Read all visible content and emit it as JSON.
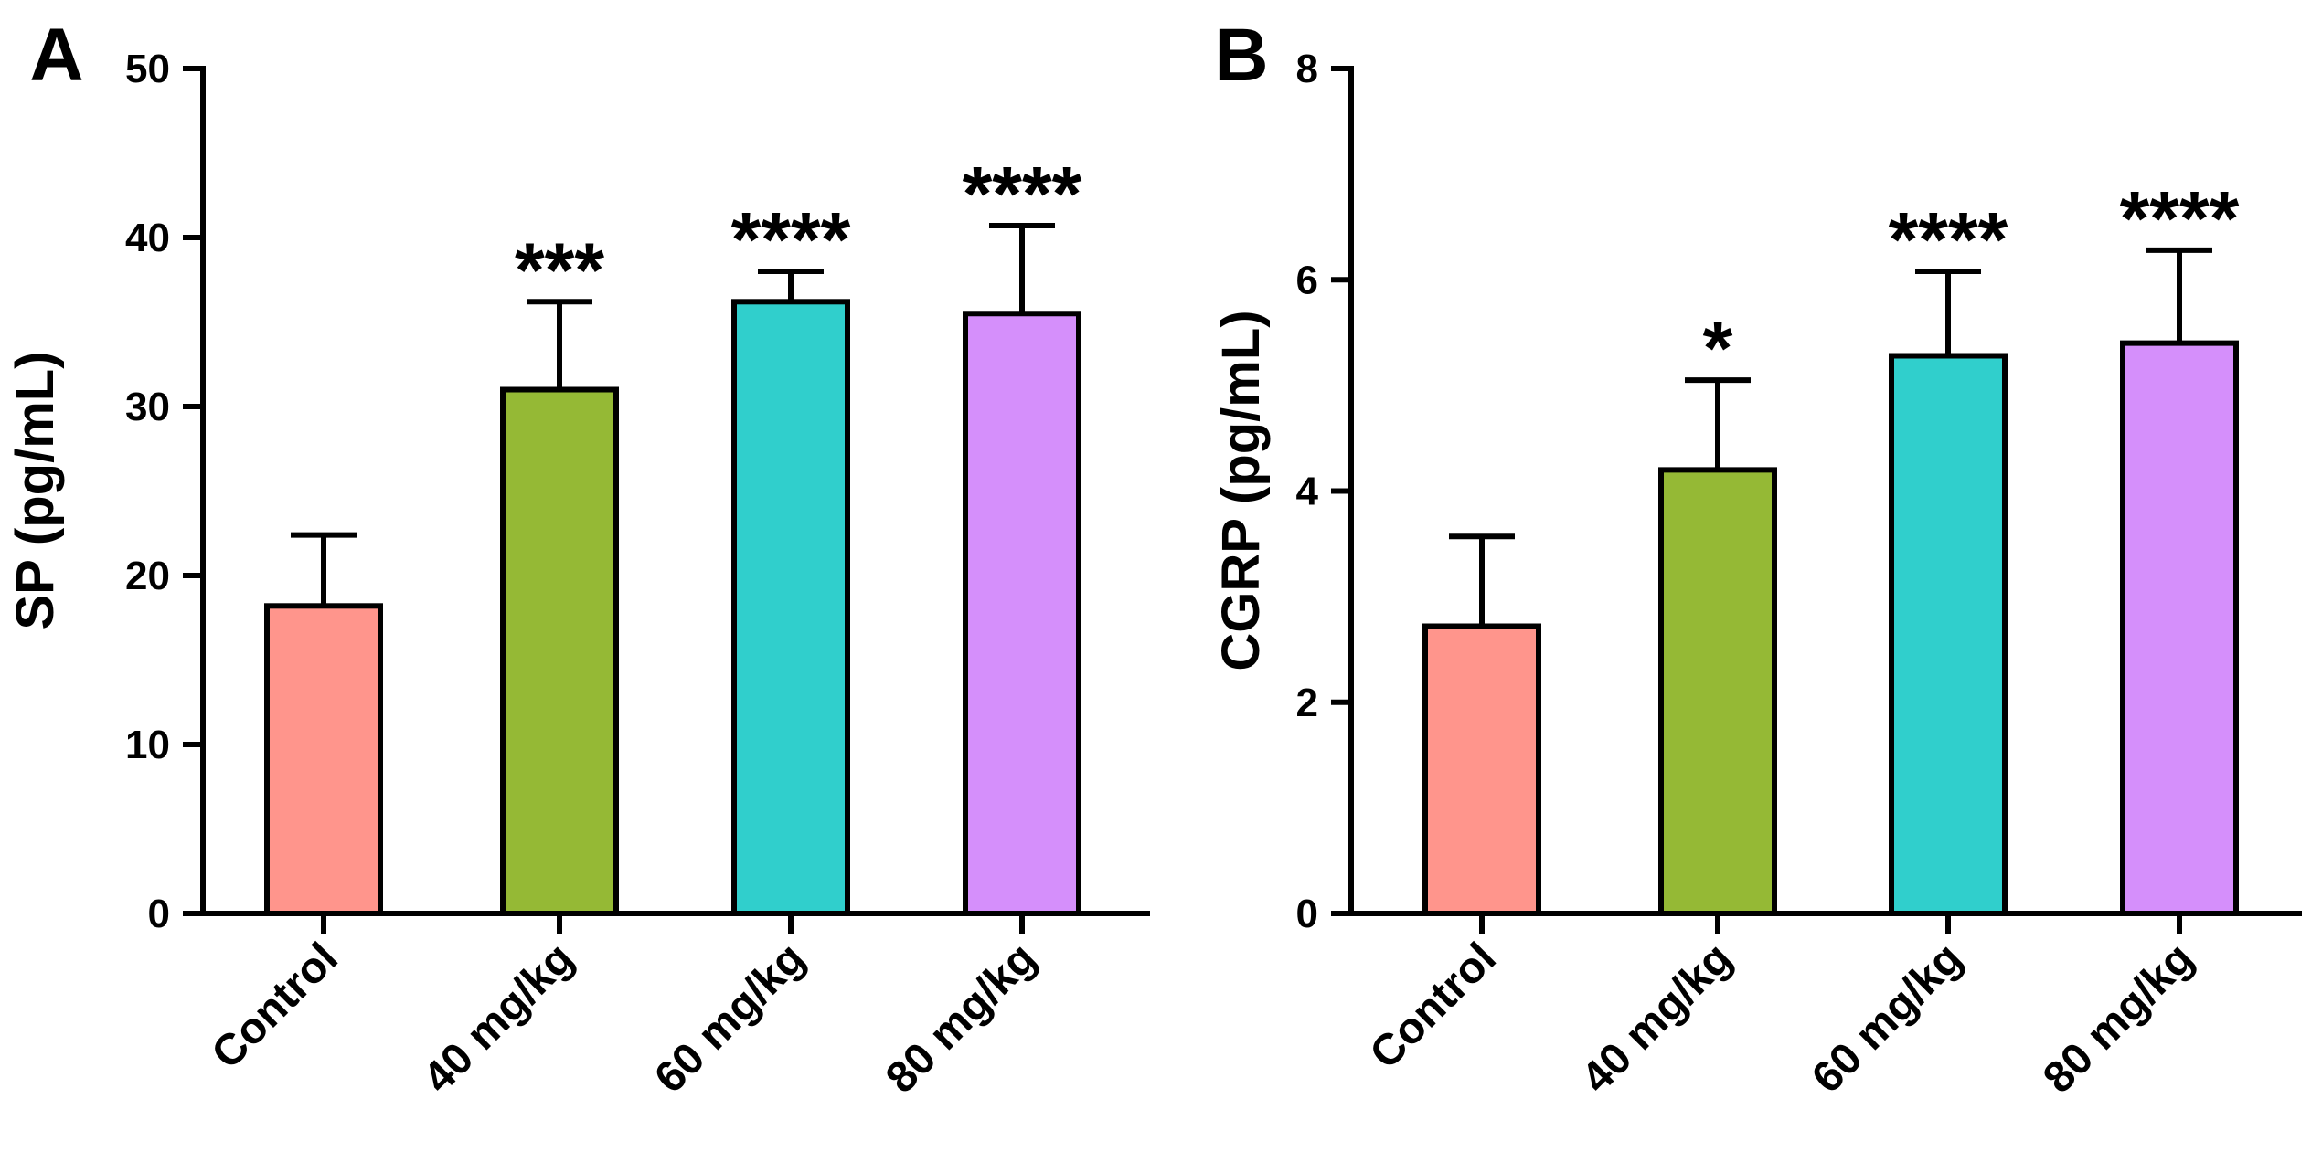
{
  "chart_data": [
    {
      "panel": "A",
      "type": "bar",
      "ylabel": "SP (pg/mL)",
      "xlabel": "",
      "ylim": [
        0,
        50
      ],
      "yticks": [
        "0",
        "10",
        "20",
        "30",
        "40",
        "50"
      ],
      "categories": [
        "Control",
        "40 mg/kg",
        "60 mg/kg",
        "80 mg/kg"
      ],
      "values": [
        18.2,
        31.0,
        36.2,
        35.5
      ],
      "errors": [
        4.2,
        5.2,
        1.8,
        5.2
      ],
      "significance": [
        "",
        "***",
        "****",
        "****"
      ],
      "colors": [
        "#FF958C",
        "#95B935",
        "#30CFCC",
        "#D58FFB"
      ]
    },
    {
      "panel": "B",
      "type": "bar",
      "ylabel": "CGRP (pg/mL)",
      "xlabel": "",
      "ylim": [
        0,
        8
      ],
      "yticks": [
        "0",
        "2",
        "4",
        "6",
        "8"
      ],
      "categories": [
        "Control",
        "40 mg/kg",
        "60 mg/kg",
        "80 mg/kg"
      ],
      "values": [
        2.72,
        4.2,
        5.28,
        5.4
      ],
      "errors": [
        0.85,
        0.85,
        0.8,
        0.88
      ],
      "significance": [
        "",
        "*",
        "****",
        "****"
      ],
      "colors": [
        "#FF958C",
        "#95B935",
        "#30CFCC",
        "#D58FFB"
      ]
    }
  ]
}
